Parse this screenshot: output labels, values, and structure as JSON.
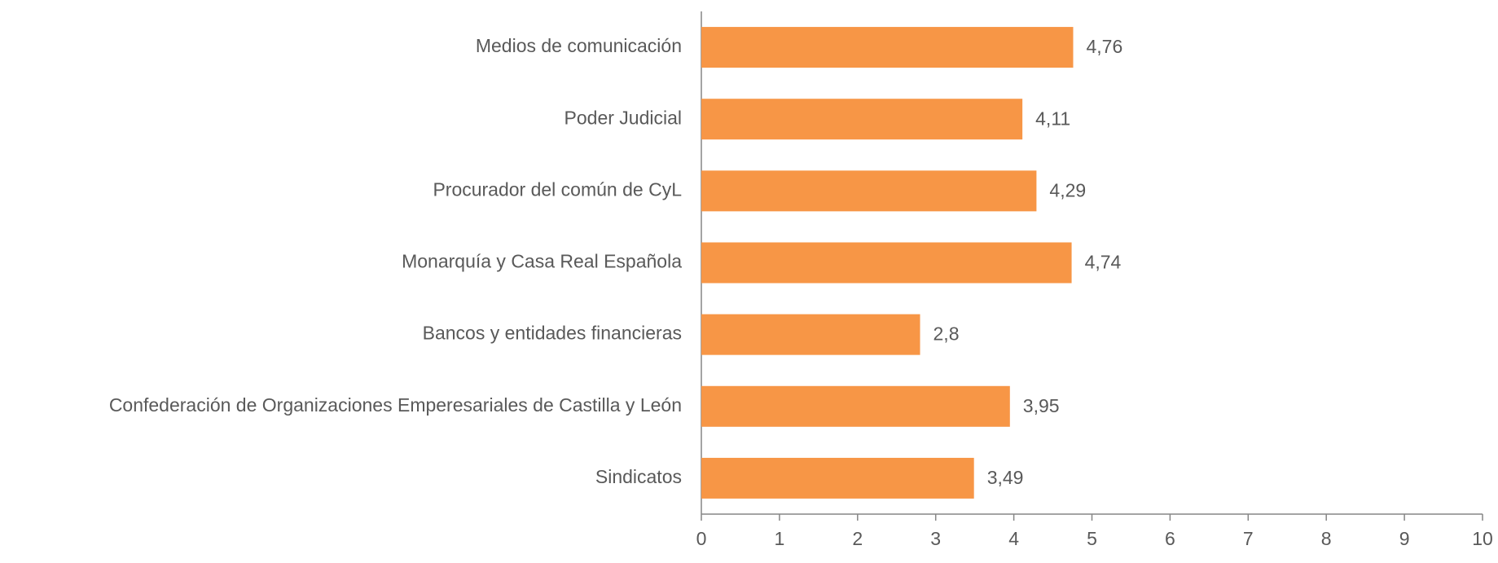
{
  "chart_data": {
    "type": "bar",
    "orientation": "horizontal",
    "categories": [
      "Medios de comunicación",
      "Poder Judicial",
      "Procurador del común de CyL",
      "Monarquía y Casa Real Española",
      "Bancos y entidades financieras",
      "Confederación de Organizaciones Emperesariales de Castilla y León",
      "Sindicatos"
    ],
    "values": [
      4.76,
      4.11,
      4.29,
      4.74,
      2.8,
      3.95,
      3.49
    ],
    "value_labels": [
      "4,76",
      "4,11",
      "4,29",
      "4,74",
      "2,8",
      "3,95",
      "3,49"
    ],
    "color": "#f79646",
    "xlim": [
      0,
      10
    ],
    "xticks": [
      0,
      1,
      2,
      3,
      4,
      5,
      6,
      7,
      8,
      9,
      10
    ],
    "grid": false
  }
}
